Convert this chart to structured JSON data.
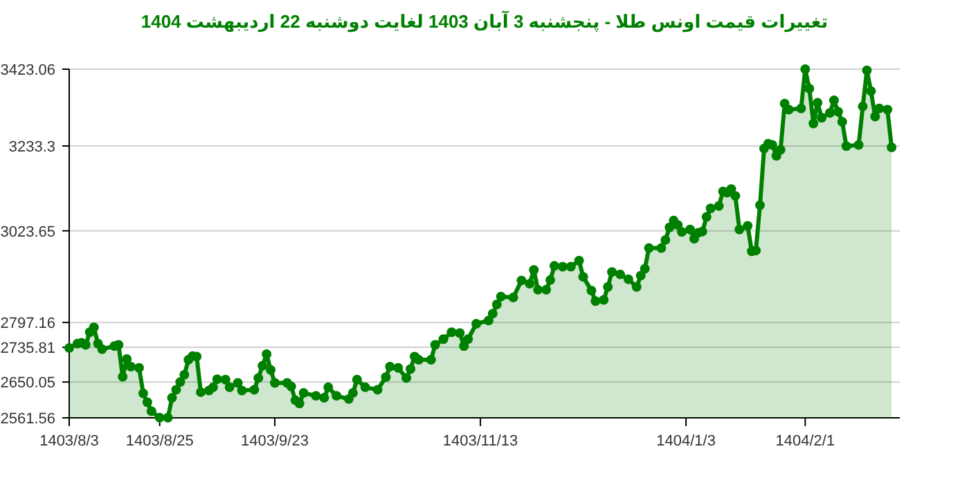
{
  "chart_data": {
    "type": "area",
    "title": "تغییرات قیمت اونس طلا - پنجشنبه  3 آبان 1403 لغایت  دوشنبه  22 اردیبهشت 1404",
    "x": [
      "2024-10-24",
      "2024-10-26",
      "2024-10-27",
      "2024-10-28",
      "2024-10-29",
      "2024-10-30",
      "2024-10-31",
      "2024-11-01",
      "2024-11-04",
      "2024-11-05",
      "2024-11-06",
      "2024-11-07",
      "2024-11-08",
      "2024-11-10",
      "2024-11-11",
      "2024-11-12",
      "2024-11-13",
      "2024-11-15",
      "2024-11-17",
      "2024-11-18",
      "2024-11-19",
      "2024-11-20",
      "2024-11-21",
      "2024-11-22",
      "2024-11-23",
      "2024-11-24",
      "2024-11-25",
      "2024-11-27",
      "2024-11-28",
      "2024-11-29",
      "2024-12-01",
      "2024-12-02",
      "2024-12-04",
      "2024-12-05",
      "2024-12-08",
      "2024-12-09",
      "2024-12-10",
      "2024-12-11",
      "2024-12-12",
      "2024-12-13",
      "2024-12-16",
      "2024-12-17",
      "2024-12-18",
      "2024-12-19",
      "2024-12-20",
      "2024-12-23",
      "2024-12-25",
      "2024-12-26",
      "2024-12-28",
      "2024-12-31",
      "2025-01-01",
      "2025-01-02",
      "2025-01-04",
      "2025-01-07",
      "2025-01-09",
      "2025-01-10",
      "2025-01-12",
      "2025-01-14",
      "2025-01-15",
      "2025-01-16",
      "2025-01-17",
      "2025-01-20",
      "2025-01-21",
      "2025-01-23",
      "2025-01-25",
      "2025-01-27",
      "2025-01-28",
      "2025-01-29",
      "2025-01-31",
      "2025-02-03",
      "2025-02-04",
      "2025-02-05",
      "2025-02-06",
      "2025-02-09",
      "2025-02-11",
      "2025-02-13",
      "2025-02-14",
      "2025-02-15",
      "2025-02-17",
      "2025-02-18",
      "2025-02-19",
      "2025-02-21",
      "2025-02-23",
      "2025-02-25",
      "2025-02-26",
      "2025-02-28",
      "2025-03-01",
      "2025-03-03",
      "2025-03-04",
      "2025-03-05",
      "2025-03-07",
      "2025-03-09",
      "2025-03-11",
      "2025-03-12",
      "2025-03-13",
      "2025-03-14",
      "2025-03-17",
      "2025-03-18",
      "2025-03-19",
      "2025-03-20",
      "2025-03-21",
      "2025-03-22",
      "2025-03-24",
      "2025-03-25",
      "2025-03-26",
      "2025-03-27",
      "2025-03-28",
      "2025-03-29",
      "2025-03-31",
      "2025-04-01",
      "2025-04-02",
      "2025-04-03",
      "2025-04-04",
      "2025-04-05",
      "2025-04-07",
      "2025-04-08",
      "2025-04-09",
      "2025-04-10",
      "2025-04-11",
      "2025-04-12",
      "2025-04-13",
      "2025-04-14",
      "2025-04-15",
      "2025-04-16",
      "2025-04-17",
      "2025-04-20",
      "2025-04-21",
      "2025-04-22",
      "2025-04-23",
      "2025-04-24",
      "2025-04-25",
      "2025-04-27",
      "2025-04-28",
      "2025-04-29",
      "2025-04-30",
      "2025-05-01",
      "2025-05-04",
      "2025-05-05",
      "2025-05-06",
      "2025-05-07",
      "2025-05-08",
      "2025-05-09",
      "2025-05-11",
      "2025-05-12"
    ],
    "series": [
      {
        "color": "#008000",
        "values": [
          2734,
          2745,
          2747,
          2742,
          2773,
          2785,
          2745,
          2731,
          2739,
          2742,
          2663,
          2707,
          2688,
          2685,
          2622,
          2600,
          2578,
          2562,
          2562,
          2611,
          2631,
          2650,
          2668,
          2705,
          2714,
          2713,
          2625,
          2629,
          2637,
          2657,
          2656,
          2637,
          2648,
          2629,
          2631,
          2660,
          2690,
          2719,
          2680,
          2648,
          2648,
          2639,
          2605,
          2597,
          2623,
          2616,
          2611,
          2637,
          2616,
          2608,
          2623,
          2656,
          2637,
          2631,
          2662,
          2688,
          2685,
          2660,
          2682,
          2713,
          2705,
          2705,
          2742,
          2756,
          2773,
          2771,
          2739,
          2756,
          2794,
          2802,
          2819,
          2842,
          2861,
          2859,
          2901,
          2893,
          2927,
          2878,
          2878,
          2902,
          2937,
          2935,
          2935,
          2950,
          2910,
          2876,
          2850,
          2853,
          2885,
          2922,
          2916,
          2904,
          2885,
          2913,
          2930,
          2981,
          2981,
          3001,
          3032,
          3049,
          3038,
          3021,
          3027,
          3004,
          3019,
          3022,
          3058,
          3079,
          3085,
          3121,
          3118,
          3127,
          3110,
          3027,
          3036,
          2973,
          2975,
          3087,
          3227,
          3239,
          3236,
          3209,
          3224,
          3338,
          3323,
          3326,
          3423,
          3375,
          3289,
          3340,
          3303,
          3315,
          3346,
          3318,
          3293,
          3233,
          3236,
          3331,
          3420,
          3369,
          3306,
          3326,
          3323,
          3230
        ]
      }
    ],
    "xlim": [
      "2024-10-24",
      "2025-05-14"
    ],
    "xticks": [
      {
        "value": "2024-10-24",
        "label": "1403/8/3"
      },
      {
        "value": "2024-11-15",
        "label": "1403/8/25"
      },
      {
        "value": "2024-12-13",
        "label": "1403/9/23"
      },
      {
        "value": "2025-02-01",
        "label": "1403/11/13"
      },
      {
        "value": "2025-03-23",
        "label": "1404/1/3"
      },
      {
        "value": "2025-04-21",
        "label": "1404/2/1"
      }
    ],
    "ylim": [
      2561.56,
      3423.06
    ],
    "yticks": [
      2561.56,
      2650.05,
      2735.81,
      2797.16,
      3023.65,
      3233.3,
      3423.06
    ],
    "grid": "y",
    "marker": "circle"
  }
}
